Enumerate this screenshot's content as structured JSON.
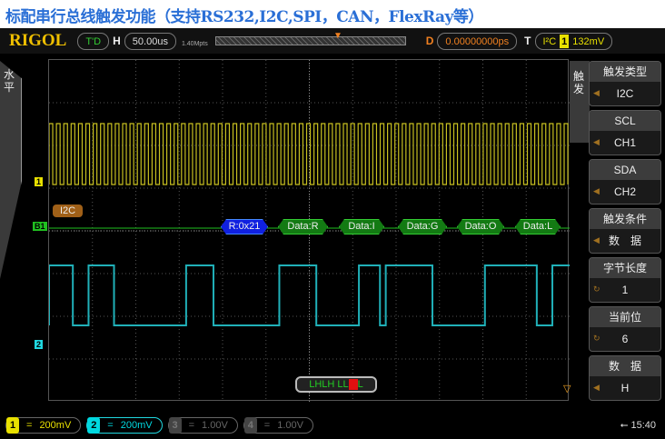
{
  "caption": "标配串行总线触发功能（支持RS232,I2C,SPI，CAN，FlexRay等）",
  "topbar": {
    "logo": "RIGOL",
    "status": "T'D",
    "h_label": "H",
    "timebase": "50.00us",
    "mem_depth": "1.40Mpts",
    "d_label": "D",
    "delay": "0.00000000ps",
    "t_label": "T",
    "trigger_type": "I²C",
    "trigger_source": "1",
    "trigger_level": "132mV"
  },
  "left_tab": "水平",
  "right_tab": "触发",
  "menu": [
    {
      "title": "触发类型",
      "value": "I2C",
      "icon": "arrow-left-icon"
    },
    {
      "title": "SCL",
      "value": "CH1",
      "icon": "arrow-left-icon"
    },
    {
      "title": "SDA",
      "value": "CH2",
      "icon": "arrow-left-icon"
    },
    {
      "title": "触发条件",
      "value": "数　据",
      "icon": "arrow-left-icon"
    },
    {
      "title": "字节长度",
      "value": "1",
      "icon": "knob-icon"
    },
    {
      "title": "当前位",
      "value": "6",
      "icon": "knob-icon"
    },
    {
      "title": "数　据",
      "value": "H",
      "icon": "arrow-left-icon"
    }
  ],
  "markers": {
    "ch1": "1",
    "bus": "B1",
    "ch2": "2",
    "bus_label": "I2C"
  },
  "decode": [
    "R:0x21",
    "Data:R",
    "Data:I",
    "Data:G",
    "Data:O",
    "Data:L"
  ],
  "code": {
    "before": "LHLH LL",
    "current": "H",
    "after": "L"
  },
  "channels": [
    {
      "num": "1",
      "scale": "200mV",
      "color": "#e8e000",
      "active": true
    },
    {
      "num": "2",
      "scale": "200mV",
      "color": "#00d8e0",
      "active": true
    },
    {
      "num": "3",
      "scale": "1.00V",
      "color": "#555",
      "active": false
    },
    {
      "num": "4",
      "scale": "1.00V",
      "color": "#555",
      "active": false
    }
  ],
  "coupling_symbol": "=",
  "clock": "15:40",
  "colors": {
    "ch1": "#c8c020",
    "ch2": "#20b0b8",
    "bus": "#20c020",
    "decode_addr": "#1020e0"
  }
}
